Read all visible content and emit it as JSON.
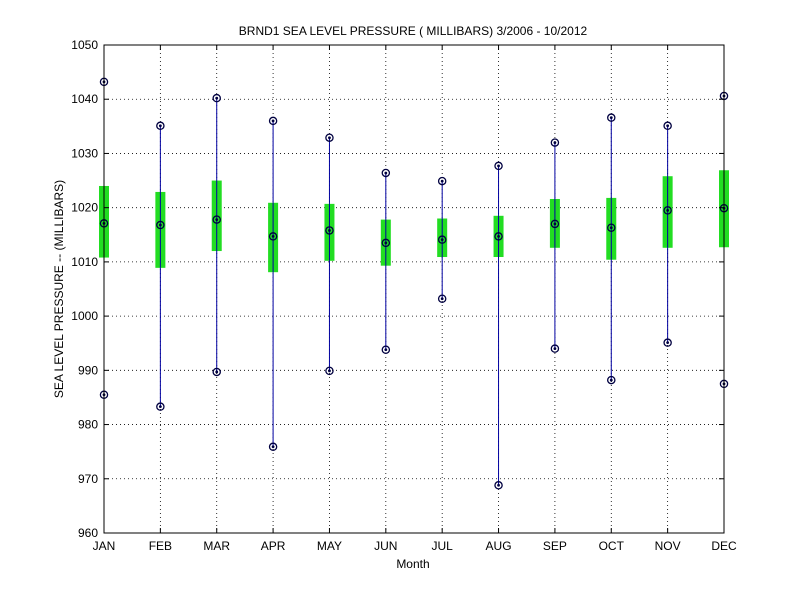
{
  "chart_data": {
    "type": "box",
    "title": "BRND1  SEA LEVEL PRESSURE ( MILLIBARS) 3/2006 - 10/2012",
    "xlabel": "Month",
    "ylabel": "SEA LEVEL PRESSURE -- (MILLIBARS)",
    "ylim": [
      960,
      1050
    ],
    "yticks": [
      960,
      970,
      980,
      990,
      1000,
      1010,
      1020,
      1030,
      1040,
      1050
    ],
    "grid": true,
    "categories": [
      "JAN",
      "FEB",
      "MAR",
      "APR",
      "MAY",
      "JUN",
      "JUL",
      "AUG",
      "SEP",
      "OCT",
      "NOV",
      "DEC"
    ],
    "series": [
      {
        "min": [
          985.5,
          983.3,
          989.7,
          975.9,
          989.9,
          993.8,
          1003.2,
          968.8,
          994.0,
          988.2,
          995.1,
          987.5
        ],
        "max": [
          1043.2,
          1035.1,
          1040.2,
          1036.0,
          1032.9,
          1026.4,
          1024.9,
          1027.7,
          1032.0,
          1036.6,
          1035.1,
          1040.6
        ],
        "q1": [
          1010.8,
          1008.9,
          1012.0,
          1008.1,
          1010.2,
          1009.3,
          1010.9,
          1010.9,
          1012.6,
          1010.4,
          1012.6,
          1012.7
        ],
        "q3": [
          1024.0,
          1022.9,
          1025.0,
          1020.9,
          1020.7,
          1017.8,
          1018.0,
          1018.5,
          1021.6,
          1021.8,
          1025.8,
          1026.9
        ],
        "median": [
          1017.1,
          1016.8,
          1017.8,
          1014.7,
          1015.8,
          1013.5,
          1014.1,
          1014.7,
          1017.0,
          1016.3,
          1019.5,
          1019.9
        ]
      }
    ],
    "colors": {
      "box": "#22dd22",
      "whisker": "#0000a0",
      "marker": "#000040"
    }
  }
}
